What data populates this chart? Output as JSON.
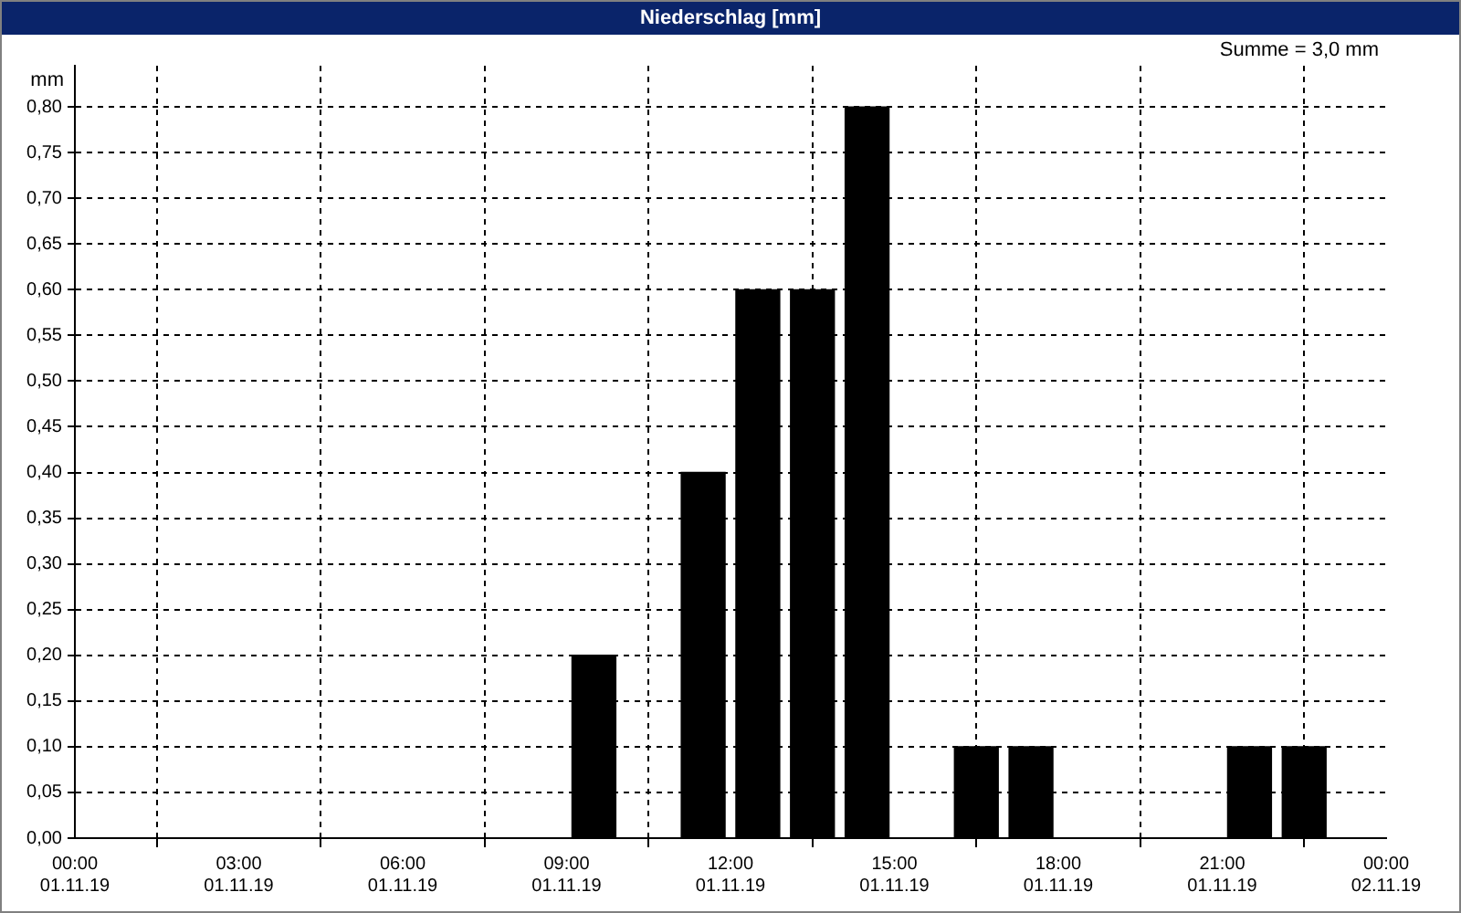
{
  "chart_data": {
    "type": "bar",
    "title": "Niederschlag [mm]",
    "ylabel": "mm",
    "annotations": [
      "Summe = 3,0 mm"
    ],
    "x": [
      "--11-01T09:30",
      "--11-01T11:30",
      "--11-01T12:30",
      "--11-01T13:30",
      "--11-01T14:30",
      "--11-01T16:30",
      "--11-01T17:30",
      "--11-01T21:30",
      "--11-01T22:30"
    ],
    "values": [
      0.2,
      0.4,
      0.6,
      0.6,
      0.8,
      0.1,
      0.1,
      0.1,
      0.1
    ],
    "color": "#000000",
    "xlim": [
      "--11-01T00:00",
      "--11-02T00:00"
    ],
    "xticks": [
      {
        "value": "--11-01T00:00",
        "label": "00:00\n01.11.19"
      },
      {
        "value": "--11-01T03:00",
        "label": "03:00\n01.11.19"
      },
      {
        "value": "--11-01T06:00",
        "label": "06:00\n01.11.19"
      },
      {
        "value": "--11-01T09:00",
        "label": "09:00\n01.11.19"
      },
      {
        "value": "--11-01T12:00",
        "label": "12:00\n01.11.19"
      },
      {
        "value": "--11-01T15:00",
        "label": "15:00\n01.11.19"
      },
      {
        "value": "--11-01T18:00",
        "label": "18:00\n01.11.19"
      },
      {
        "value": "--11-01T21:00",
        "label": "21:00\n01.11.19"
      },
      {
        "value": "--11-02T00:00",
        "label": "00:00\n02.11.19"
      }
    ],
    "ylim": [
      0,
      0.845
    ],
    "yticks": [
      {
        "value": 0,
        "label": "0,00"
      },
      {
        "value": 0.05,
        "label": "0,05"
      },
      {
        "value": 0.1,
        "label": "0,10"
      },
      {
        "value": 0.15,
        "label": "0,15"
      },
      {
        "value": 0.2,
        "label": "0,20"
      },
      {
        "value": 0.25,
        "label": "0,25"
      },
      {
        "value": 0.3,
        "label": "0,30"
      },
      {
        "value": 0.35,
        "label": "0,35"
      },
      {
        "value": 0.4,
        "label": "0,40"
      },
      {
        "value": 0.45,
        "label": "0,45"
      },
      {
        "value": 0.5,
        "label": "0,50"
      },
      {
        "value": 0.55,
        "label": "0,55"
      },
      {
        "value": 0.6,
        "label": "0,60"
      },
      {
        "value": 0.65,
        "label": "0,65"
      },
      {
        "value": 0.7,
        "label": "0,70"
      },
      {
        "value": 0.75,
        "label": "0,75"
      },
      {
        "value": 0.8,
        "label": "0,80"
      }
    ],
    "grid": true,
    "legend": false
  }
}
